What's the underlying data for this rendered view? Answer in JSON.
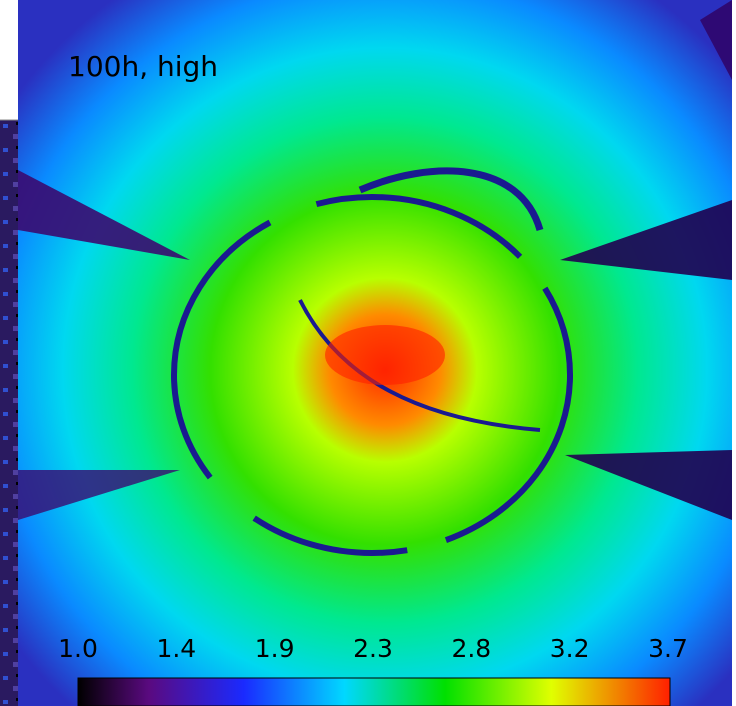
{
  "panel_label": "100h, high",
  "colorbar": {
    "ticks": [
      "1.0",
      "1.4",
      "1.9",
      "2.3",
      "2.8",
      "3.2",
      "3.7"
    ]
  }
}
